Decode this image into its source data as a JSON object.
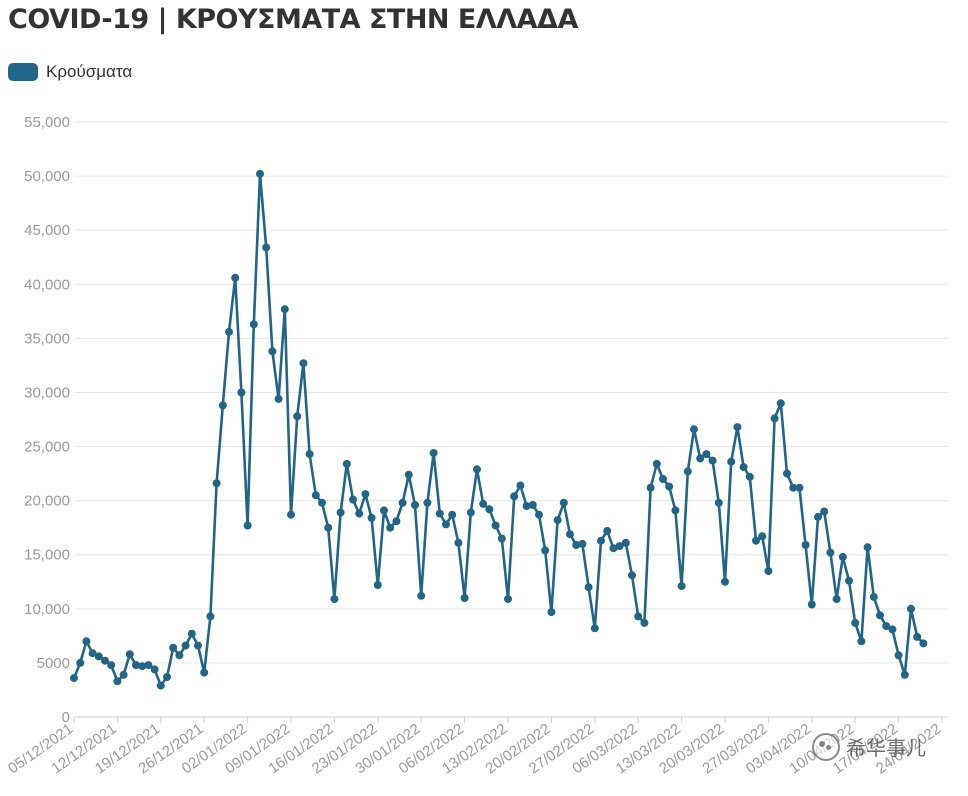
{
  "title": "COVID-19 | ΚΡΟΥΣΜΑΤΑ ΣΤΗΝ ΕΛΛΑΔΑ",
  "legend": {
    "label": "Κρούσματα"
  },
  "colors": {
    "series": "#1f6688",
    "grid": "#e6e6e6",
    "axis_text": "#9a9a9a",
    "title": "#333333"
  },
  "watermark": {
    "text": "希华事儿",
    "icon": "wechat-icon"
  },
  "chart_data": {
    "type": "line",
    "title": "COVID-19 | ΚΡΟΥΣΜΑΤΑ ΣΤΗΝ ΕΛΛΑΔΑ",
    "xlabel": "",
    "ylabel": "",
    "ylim": [
      0,
      55000
    ],
    "yticks": [
      0,
      5000,
      10000,
      15000,
      20000,
      25000,
      30000,
      35000,
      40000,
      45000,
      50000,
      55000
    ],
    "ytick_labels": [
      "0",
      "5000",
      "10,000",
      "15,000",
      "20,000",
      "25,000",
      "30,000",
      "35,000",
      "40,000",
      "45,000",
      "50,000",
      "55,000"
    ],
    "xtick_labels": [
      "05/12/2021",
      "12/12/2021",
      "19/12/2021",
      "26/12/2021",
      "02/01/2022",
      "09/01/2022",
      "16/01/2022",
      "23/01/2022",
      "30/01/2022",
      "06/02/2022",
      "13/02/2022",
      "20/02/2022",
      "27/02/2022",
      "06/03/2022",
      "13/03/2022",
      "20/03/2022",
      "27/03/2022",
      "03/04/2022",
      "10/04/2022",
      "17/04/2022",
      "24/04/2022"
    ],
    "xtick_every": 7,
    "grid": true,
    "legend_position": "top-left",
    "series": [
      {
        "name": "Κρούσματα",
        "values": [
          3600,
          5000,
          7000,
          5900,
          5600,
          5200,
          4800,
          3300,
          3900,
          5800,
          4800,
          4700,
          4800,
          4400,
          2900,
          3700,
          6400,
          5700,
          6600,
          7700,
          6600,
          4100,
          9300,
          21600,
          28800,
          35600,
          40600,
          30000,
          17700,
          36300,
          50200,
          43400,
          33800,
          29400,
          37700,
          18700,
          27800,
          32700,
          24300,
          20500,
          19800,
          17500,
          10900,
          18900,
          23400,
          20100,
          18800,
          20600,
          18400,
          12200,
          19100,
          17500,
          18100,
          19800,
          22400,
          19600,
          11200,
          19800,
          24400,
          18800,
          17800,
          18700,
          16100,
          11000,
          18900,
          22900,
          19700,
          19200,
          17700,
          16500,
          10900,
          20400,
          21400,
          19500,
          19600,
          18700,
          15400,
          9700,
          18200,
          19800,
          16900,
          15900,
          16000,
          12000,
          8200,
          16300,
          17200,
          15600,
          15800,
          16100,
          13100,
          9300,
          8700,
          21200,
          23400,
          22000,
          21300,
          19100,
          12100,
          22700,
          26600,
          23900,
          24300,
          23700,
          19800,
          12500,
          23600,
          26800,
          23100,
          22200,
          16300,
          16700,
          13500,
          27600,
          29000,
          22500,
          21200,
          21200,
          15900,
          10400,
          18500,
          19000,
          15200,
          10900,
          14800,
          12600,
          8700,
          7000,
          15700,
          11100,
          9400,
          8400,
          8100,
          5700,
          3900,
          10000,
          7400,
          6800
        ]
      }
    ]
  }
}
